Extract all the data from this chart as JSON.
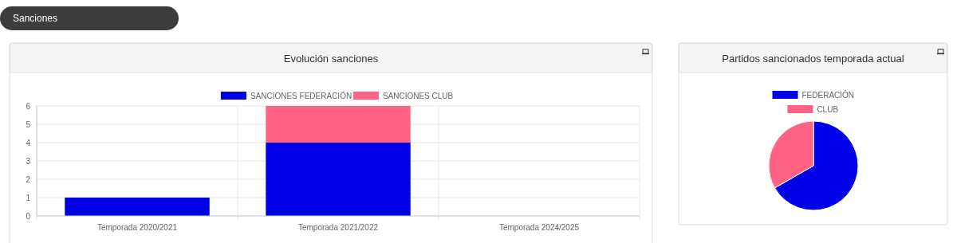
{
  "chart_data": [
    {
      "type": "bar",
      "title": "Evolución sanciones",
      "annotations": [
        "Sanciones"
      ],
      "categories": [
        "Temporada 2020/2021",
        "Temporada 2021/2022",
        "Temporada 2024/2025"
      ],
      "stacked": true,
      "series": [
        {
          "name": "SANCIONES FEDERACIÓN",
          "color": "#0000e6",
          "values": [
            1,
            4,
            0
          ]
        },
        {
          "name": "SANCIONES CLUB",
          "color": "#ff6384",
          "values": [
            0,
            2,
            0
          ]
        }
      ],
      "ylim": [
        0,
        6
      ],
      "yticks": [
        0,
        1,
        2,
        3,
        4,
        5,
        6
      ],
      "grid": true,
      "legend": "top"
    },
    {
      "type": "pie",
      "title": "Partidos sancionados temporada actual",
      "categories": [
        "FEDERACIÓN",
        "CLUB"
      ],
      "values": [
        66.7,
        33.3
      ],
      "colors": [
        "#0000e6",
        "#ff6384"
      ],
      "legend": "top"
    }
  ]
}
